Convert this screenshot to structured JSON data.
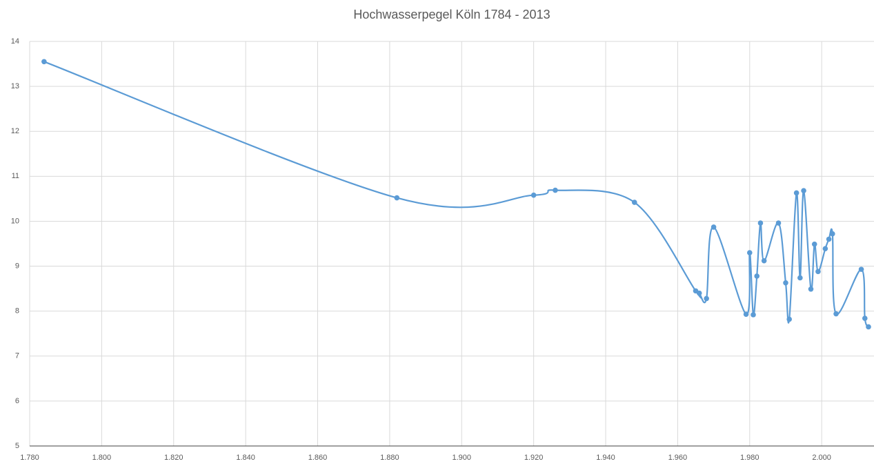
{
  "chart_data": {
    "type": "line",
    "title": "Hochwasserpegel Köln 1784 - 2013",
    "smooth": true,
    "grid": true,
    "x": [
      1784,
      1882,
      1920,
      1926,
      1948,
      1965,
      1966,
      1968,
      1970,
      1979,
      1980,
      1981,
      1982,
      1983,
      1984,
      1988,
      1990,
      1991,
      1993,
      1994,
      1995,
      1997,
      1998,
      1999,
      2001,
      2002,
      2003,
      2004,
      2011,
      2012,
      2013
    ],
    "series": [
      {
        "color": "#5b9bd5",
        "values": [
          13.55,
          10.52,
          10.58,
          10.69,
          10.42,
          8.45,
          8.4,
          8.28,
          9.87,
          7.93,
          9.3,
          7.92,
          8.78,
          9.96,
          9.12,
          9.96,
          8.63,
          7.82,
          10.63,
          8.74,
          10.68,
          8.49,
          9.49,
          8.88,
          9.39,
          9.6,
          9.72,
          7.94,
          8.93,
          7.84,
          7.65
        ]
      }
    ],
    "xlim": [
      1780,
      2013
    ],
    "xticks": [
      {
        "value": 1780,
        "label": "1.780"
      },
      {
        "value": 1800,
        "label": "1.800"
      },
      {
        "value": 1820,
        "label": "1.820"
      },
      {
        "value": 1840,
        "label": "1.840"
      },
      {
        "value": 1860,
        "label": "1.860"
      },
      {
        "value": 1880,
        "label": "1.880"
      },
      {
        "value": 1900,
        "label": "1.900"
      },
      {
        "value": 1920,
        "label": "1.920"
      },
      {
        "value": 1940,
        "label": "1.940"
      },
      {
        "value": 1960,
        "label": "1.960"
      },
      {
        "value": 1980,
        "label": "1.980"
      },
      {
        "value": 2000,
        "label": "2.000"
      }
    ],
    "ylim": [
      5,
      14
    ],
    "yticks": [
      5,
      6,
      7,
      8,
      9,
      10,
      11,
      12,
      13,
      14
    ]
  }
}
